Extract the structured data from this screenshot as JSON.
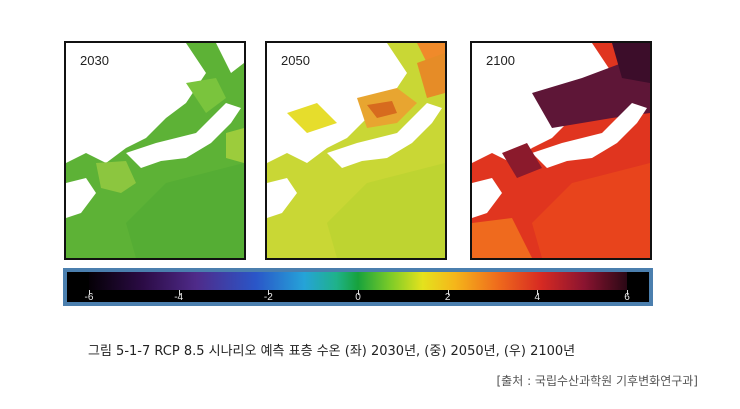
{
  "panels": [
    {
      "label": "2030"
    },
    {
      "label": "2050"
    },
    {
      "label": "2100"
    }
  ],
  "colorbar": {
    "ticks": [
      "-6",
      "-4",
      "-2",
      "0",
      "2",
      "4",
      "6"
    ],
    "range": [
      -6,
      6
    ]
  },
  "caption": "그림 5-1-7 RCP 8.5 시나리오 예측 표층 수온 (좌) 2030년, (중) 2050년, (우) 2100년",
  "source": "[출처 : 국립수산과학원 기후변화연구과]",
  "colors": {
    "panel_2030": "#6fbf3a",
    "panel_2050": "#c8d834",
    "panel_2100": "#d9321e",
    "colorbar_frame": "#4b7fae"
  }
}
